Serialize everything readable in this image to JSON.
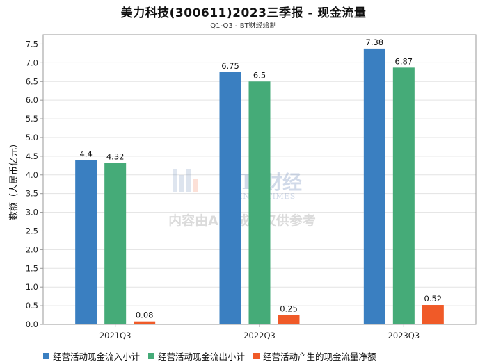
{
  "header": {
    "title": "美力科技(300611)2023三季报 - 现金流量",
    "subtitle": "Q1-Q3 - BT财经绘制"
  },
  "watermark": {
    "brand_latin": "BT",
    "brand_cn": "财经",
    "brand_sub": "BUSINESSTIMES",
    "notice": "内容由AI生成，仅供参考"
  },
  "colors": {
    "series1": "#3a7fc1",
    "series2": "#45ab78",
    "series3": "#f05a28",
    "grid": "#e3e3e3",
    "axis": "#999999"
  },
  "chart_data": {
    "type": "bar",
    "title": "美力科技(300611)2023三季报 - 现金流量",
    "subtitle": "Q1-Q3 - BT财经绘制",
    "ylabel": "数额（人民币亿元）",
    "xlabel": "",
    "categories": [
      "2021Q3",
      "2022Q3",
      "2023Q3"
    ],
    "series": [
      {
        "name": "经营活动现金流入小计",
        "values": [
          4.4,
          6.75,
          7.38
        ]
      },
      {
        "name": "经营活动现金流出小计",
        "values": [
          4.32,
          6.5,
          6.87
        ]
      },
      {
        "name": "经营活动产生的现金流量净额",
        "values": [
          0.08,
          0.25,
          0.52
        ]
      }
    ],
    "ylim": [
      0,
      7.75
    ],
    "yticks": [
      "0.0",
      "0.5",
      "1.0",
      "1.5",
      "2.0",
      "2.5",
      "3.0",
      "3.5",
      "4.0",
      "4.5",
      "5.0",
      "5.5",
      "6.0",
      "6.5",
      "7.0",
      "7.5"
    ],
    "grid": true,
    "legend_position": "bottom"
  }
}
